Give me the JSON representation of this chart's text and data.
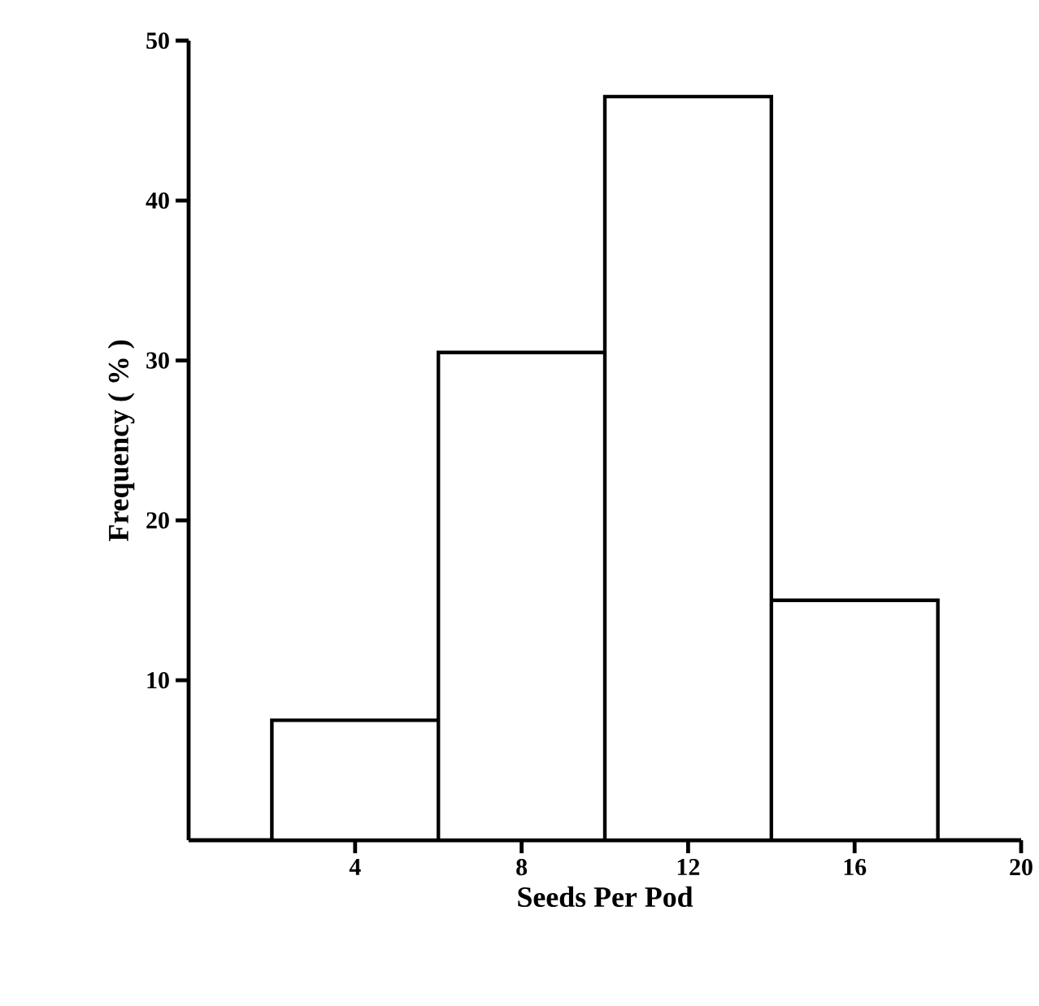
{
  "chart_data": {
    "type": "histogram",
    "xlabel": "Seeds Per Pod",
    "ylabel": "Frequency ( % )",
    "bins": [
      2,
      6,
      10,
      14,
      18
    ],
    "values": [
      7.5,
      30.5,
      46.5,
      15
    ],
    "color": "#ffffff",
    "xlim": [
      0,
      20
    ],
    "ylim": [
      0,
      50
    ],
    "xticks": [
      4,
      8,
      12,
      16,
      20
    ],
    "yticks": [
      10,
      20,
      30,
      40,
      50
    ],
    "grid": false
  }
}
